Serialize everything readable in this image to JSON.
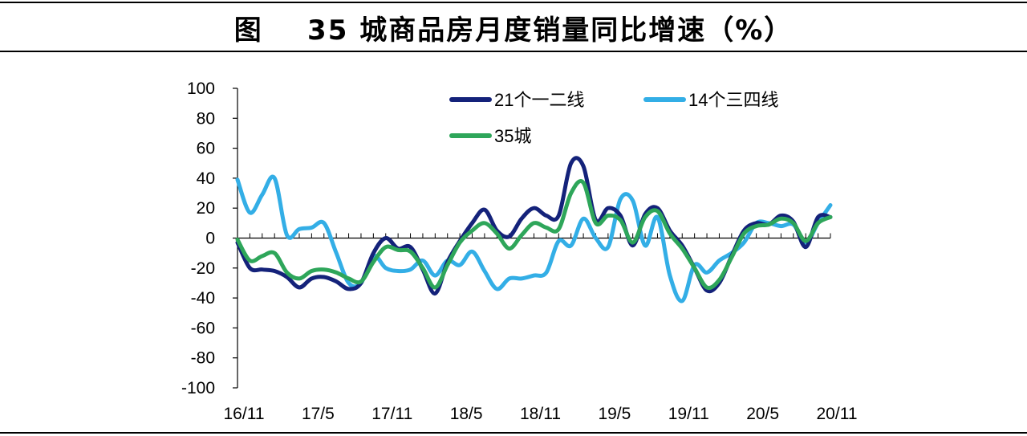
{
  "title": "图    35 城商品房月度销量同比增速（%）",
  "chart_data": {
    "type": "line",
    "title": "图    35 城商品房月度销量同比增速（%）",
    "xlabel": "",
    "ylabel": "",
    "ylim": [
      -100,
      100
    ],
    "yticks": [
      "100",
      "80",
      "60",
      "40",
      "20",
      "0",
      "-20",
      "-40",
      "-60",
      "-80",
      "-100"
    ],
    "yticks_values": [
      100,
      80,
      60,
      40,
      20,
      0,
      -20,
      -40,
      -60,
      -80,
      -100
    ],
    "xtick_labels": [
      "16/11",
      "17/5",
      "17/11",
      "18/5",
      "18/11",
      "19/5",
      "19/11",
      "20/5",
      "20/11"
    ],
    "x": [
      "16/11",
      "16/12",
      "17/1",
      "17/2",
      "17/3",
      "17/4",
      "17/5",
      "17/6",
      "17/7",
      "17/8",
      "17/9",
      "17/10",
      "17/11",
      "17/12",
      "18/1",
      "18/2",
      "18/3",
      "18/4",
      "18/5",
      "18/6",
      "18/7",
      "18/8",
      "18/9",
      "18/10",
      "18/11",
      "18/12",
      "19/1",
      "19/2",
      "19/3",
      "19/4",
      "19/5",
      "19/6",
      "19/7",
      "19/8",
      "19/9",
      "19/10",
      "19/11",
      "19/12",
      "20/1",
      "20/2",
      "20/3",
      "20/4",
      "20/5",
      "20/6",
      "20/7",
      "20/8",
      "20/9",
      "20/10",
      "20/11"
    ],
    "grid": false,
    "legend_position": "top",
    "series": [
      {
        "name": "21个一二线",
        "color": "#14227a",
        "values": [
          -3,
          -20,
          -21,
          -22,
          -26,
          -33,
          -27,
          -26,
          -29,
          -34,
          -30,
          -10,
          0,
          -7,
          -6,
          -21,
          -37,
          -16,
          -2,
          10,
          19,
          5,
          1,
          13,
          20,
          15,
          15,
          50,
          48,
          12,
          20,
          15,
          -5,
          16,
          20,
          5,
          -5,
          -20,
          -35,
          -30,
          -12,
          5,
          10,
          9,
          15,
          11,
          -6,
          14,
          14
        ]
      },
      {
        "name": "14个三四线",
        "color": "#33aee6",
        "values": [
          39,
          17,
          29,
          40,
          2,
          6,
          7,
          10,
          -10,
          -30,
          -30,
          -12,
          -20,
          -22,
          -21,
          -15,
          -25,
          -15,
          -18,
          -9,
          -22,
          -34,
          -27,
          -27,
          -25,
          -23,
          -2,
          -5,
          13,
          0,
          -6,
          26,
          25,
          -5,
          14,
          -25,
          -42,
          -18,
          -23,
          -15,
          -10,
          -3,
          10,
          10,
          8,
          9,
          -3,
          10,
          22
        ]
      },
      {
        "name": "35城",
        "color": "#2ea65a",
        "values": [
          -1,
          -15,
          -12,
          -10,
          -23,
          -27,
          -22,
          -21,
          -23,
          -27,
          -29,
          -16,
          -6,
          -8,
          -9,
          -20,
          -33,
          -18,
          -3,
          5,
          10,
          3,
          -7,
          2,
          10,
          7,
          6,
          30,
          37,
          10,
          15,
          12,
          -3,
          14,
          18,
          3,
          -7,
          -20,
          -33,
          -28,
          -13,
          3,
          8,
          9,
          13,
          10,
          -2,
          10,
          14
        ]
      }
    ]
  }
}
